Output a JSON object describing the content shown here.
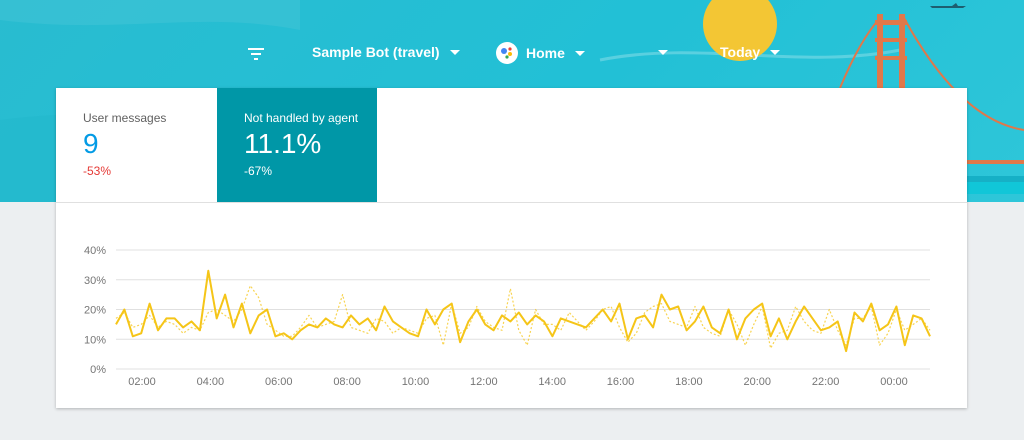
{
  "toolbar": {
    "agent_label": "Sample Bot (travel)",
    "platform_label": "Home",
    "range_label": "Today"
  },
  "metrics": [
    {
      "label": "User messages",
      "value": "9",
      "delta": "-53%"
    },
    {
      "label": "Not handled by agent",
      "value": "11.1%",
      "delta": "-67%"
    }
  ],
  "colors": {
    "accent": "#0097a7",
    "value_blue": "#039be5",
    "negative": "#e53935",
    "series": "#f5c518"
  },
  "chart_data": {
    "type": "line",
    "ylim": [
      0,
      40
    ],
    "yticks": [
      "0%",
      "10%",
      "20%",
      "30%",
      "40%"
    ],
    "xticks": [
      "02:00",
      "04:00",
      "06:00",
      "08:00",
      "10:00",
      "12:00",
      "14:00",
      "16:00",
      "18:00",
      "20:00",
      "22:00",
      "00:00"
    ],
    "grid": true,
    "series": [
      {
        "style": "solid",
        "values": [
          15,
          20,
          11,
          12,
          22,
          13,
          17,
          17,
          14,
          16,
          13,
          33,
          17,
          25,
          14,
          22,
          12,
          18,
          20,
          11,
          12,
          10,
          13,
          15,
          14,
          17,
          15,
          14,
          18,
          15,
          17,
          13,
          21,
          16,
          14,
          12,
          11,
          20,
          15,
          20,
          22,
          9,
          16,
          20,
          15,
          13,
          18,
          16,
          19,
          15,
          18,
          16,
          11,
          17,
          16,
          15,
          14,
          17,
          20,
          16,
          22,
          10,
          17,
          18,
          14,
          25,
          20,
          21,
          13,
          16,
          21,
          14,
          12,
          20,
          10,
          17,
          20,
          22,
          11,
          17,
          10,
          16,
          21,
          17,
          13,
          14,
          16,
          6,
          19,
          16,
          22,
          13,
          15,
          21,
          8,
          18,
          17,
          11
        ]
      },
      {
        "style": "dotted",
        "values": [
          17,
          19,
          14,
          15,
          18,
          14,
          16,
          15,
          12,
          14,
          13,
          19,
          20,
          18,
          16,
          20,
          28,
          24,
          15,
          13,
          11,
          11,
          14,
          18,
          14,
          15,
          16,
          25,
          14,
          13,
          12,
          17,
          16,
          12,
          14,
          13,
          12,
          17,
          18,
          8,
          22,
          12,
          14,
          21,
          16,
          14,
          13,
          27,
          13,
          8,
          20,
          15,
          15,
          13,
          19,
          16,
          13,
          16,
          20,
          21,
          14,
          9,
          12,
          19,
          21,
          22,
          16,
          15,
          14,
          21,
          14,
          12,
          11,
          20,
          15,
          8,
          15,
          21,
          7,
          12,
          13,
          21,
          16,
          13,
          12,
          20,
          13,
          8,
          17,
          17,
          21,
          8,
          12,
          20,
          13,
          15,
          17,
          13
        ]
      }
    ]
  }
}
